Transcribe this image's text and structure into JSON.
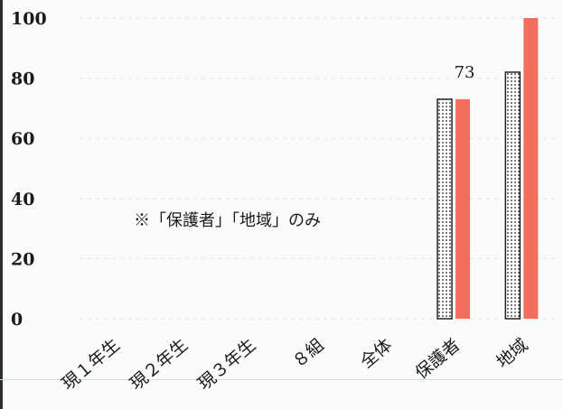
{
  "chart_data": {
    "type": "bar",
    "categories": [
      "現１年生",
      "現２年生",
      "現３年生",
      "８組",
      "全体",
      "保護者",
      "地域"
    ],
    "series": [
      {
        "style": "dotted",
        "color": "#ffffff",
        "values": [
          null,
          null,
          null,
          null,
          null,
          73,
          82
        ]
      },
      {
        "style": "solid",
        "color": "#f26f5c",
        "values": [
          null,
          null,
          null,
          null,
          null,
          73,
          100
        ]
      }
    ],
    "data_labels": [
      {
        "category": "保護者",
        "text": "73"
      }
    ],
    "ylim": [
      0,
      100
    ],
    "yticks": [
      "0",
      "20",
      "40",
      "60",
      "80",
      "100"
    ],
    "annotation": "※「保護者」「地域」のみ",
    "grid": true
  }
}
